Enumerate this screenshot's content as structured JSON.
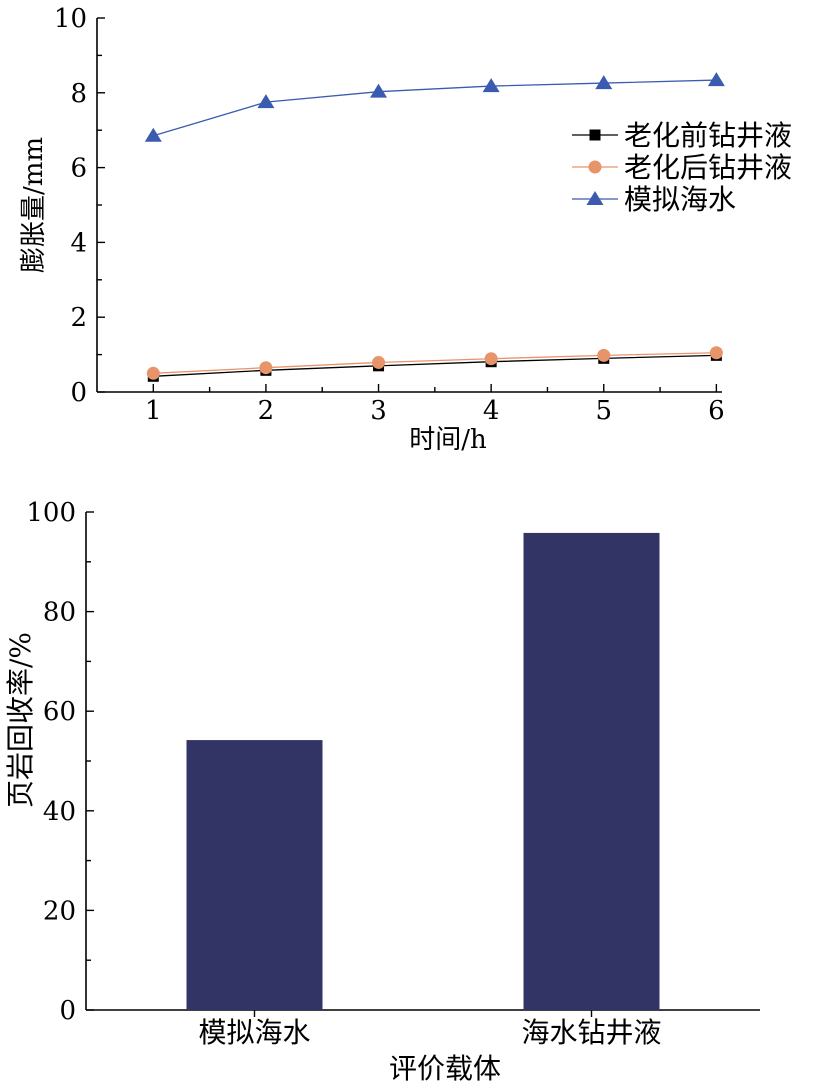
{
  "chart_data": [
    {
      "type": "line",
      "x": [
        1,
        2,
        3,
        4,
        5,
        6
      ],
      "xlabel": "时间/h",
      "ylabel": "膨胀量/mm",
      "xlim": [
        0.5,
        6.05
      ],
      "ylim": [
        0,
        10
      ],
      "xticks": [
        "1",
        "2",
        "3",
        "4",
        "5",
        "6"
      ],
      "yticks": [
        "0",
        "2",
        "4",
        "6",
        "8",
        "10"
      ],
      "grid": false,
      "legend_position": "right",
      "series": [
        {
          "name": "老化前钻井液",
          "marker": "square",
          "color": "#000000",
          "values": [
            0.42,
            0.58,
            0.7,
            0.81,
            0.9,
            0.98
          ]
        },
        {
          "name": "老化后钻井液",
          "marker": "circle",
          "color": "#e8946a",
          "values": [
            0.5,
            0.65,
            0.79,
            0.89,
            0.98,
            1.05
          ]
        },
        {
          "name": "模拟海水",
          "marker": "triangle",
          "color": "#3a5bb0",
          "values": [
            6.85,
            7.75,
            8.03,
            8.18,
            8.26,
            8.34
          ]
        }
      ]
    },
    {
      "type": "bar",
      "categories": [
        "模拟海水",
        "海水钻井液"
      ],
      "values": [
        54.2,
        95.8
      ],
      "xlabel": "评价载体",
      "ylabel": "页岩回收率/%",
      "ylim": [
        0,
        100
      ],
      "yticks": [
        "0",
        "20",
        "40",
        "60",
        "80",
        "100"
      ],
      "bar_color": "#313464",
      "grid": false
    }
  ]
}
